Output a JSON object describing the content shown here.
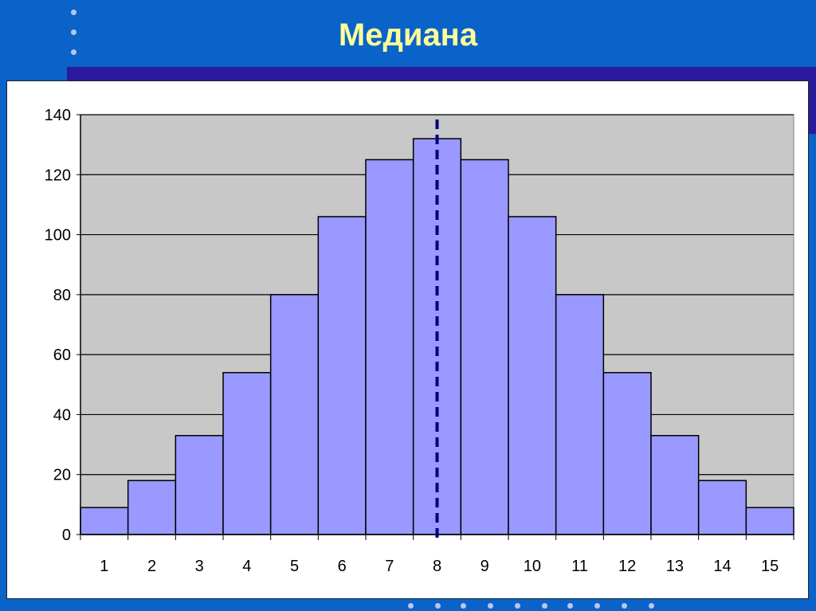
{
  "slide": {
    "title": "Медиана"
  },
  "colors": {
    "background": "#0a63c9",
    "band": "#2a1a9c",
    "title": "#ffff99",
    "plot_area": "#c8c8c8",
    "bar_fill": "#9999ff",
    "median_line": "#000080"
  },
  "chart_data": {
    "type": "bar",
    "title": "",
    "xlabel": "",
    "ylabel": "",
    "categories": [
      "1",
      "2",
      "3",
      "4",
      "5",
      "6",
      "7",
      "8",
      "9",
      "10",
      "11",
      "12",
      "13",
      "14",
      "15"
    ],
    "values": [
      9,
      18,
      33,
      54,
      80,
      106,
      125,
      132,
      125,
      106,
      80,
      54,
      33,
      18,
      9
    ],
    "ylim": [
      0,
      140
    ],
    "yticks": [
      "0",
      "20",
      "40",
      "60",
      "80",
      "100",
      "120",
      "140"
    ],
    "grid": true,
    "legend": "none",
    "median_category": "8"
  }
}
